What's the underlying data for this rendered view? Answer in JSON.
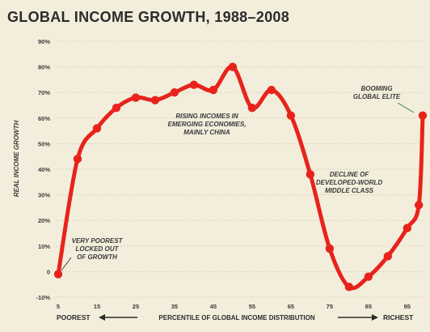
{
  "chart_data": {
    "type": "line",
    "title": "GLOBAL INCOME GROWTH, 1988–2008",
    "ylabel": "REAL INCOME GROWTH",
    "xlabel": "PERCENTILE OF GLOBAL INCOME DISTRIBUTION",
    "x_left_label": "POOREST",
    "x_right_label": "RICHEST",
    "ylim": [
      -10,
      90
    ],
    "xlim": [
      5,
      99
    ],
    "yticks": [
      -10,
      0,
      10,
      20,
      30,
      40,
      50,
      60,
      70,
      80,
      90
    ],
    "ytick_labels": [
      "-10%",
      "0",
      "10%",
      "20%",
      "30%",
      "40%",
      "50%",
      "60%",
      "70%",
      "80%",
      "90%"
    ],
    "xticks": [
      5,
      15,
      25,
      35,
      45,
      55,
      65,
      75,
      85,
      95
    ],
    "xtick_labels": [
      "5",
      "15",
      "25",
      "35",
      "45",
      "55",
      "65",
      "75",
      "85",
      "95"
    ],
    "grid": true,
    "color": "#e8231c",
    "x": [
      5,
      10,
      15,
      20,
      25,
      30,
      35,
      40,
      45,
      50,
      55,
      60,
      65,
      70,
      75,
      80,
      85,
      90,
      95,
      98,
      99
    ],
    "y": [
      -1,
      44,
      56,
      64,
      68,
      67,
      70,
      73,
      71,
      80,
      64,
      71,
      61,
      38,
      9,
      -6,
      -2,
      6,
      17,
      26,
      61
    ],
    "annotations": [
      {
        "lines": [
          "VERY POOREST",
          "LOCKED OUT",
          "OF GROWTH"
        ]
      },
      {
        "lines": [
          "RISING INCOMES IN",
          "EMERGING ECONOMIES,",
          "MAINLY CHINA"
        ]
      },
      {
        "lines": [
          "DECLINE OF",
          "DEVELOPED-WORLD",
          "MIDDLE CLASS"
        ]
      },
      {
        "lines": [
          "BOOMING",
          "GLOBAL ELITE"
        ]
      }
    ]
  }
}
